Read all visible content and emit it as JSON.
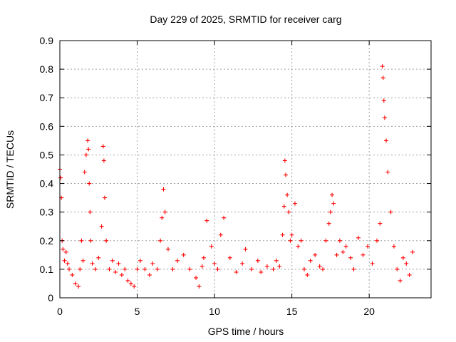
{
  "chart_data": {
    "type": "scatter",
    "title": "Day 229 of 2025, SRMTID for receiver carg",
    "xlabel": "GPS time / hours",
    "ylabel": "SRMTID / TECUs",
    "xlim": [
      0,
      24
    ],
    "ylim": [
      0,
      0.9
    ],
    "xticks": [
      0,
      5,
      10,
      15,
      20
    ],
    "xtick_labels": [
      "0",
      "5",
      "10",
      "15",
      "20"
    ],
    "yticks": [
      0,
      0.1,
      0.2,
      0.3,
      0.4,
      0.5,
      0.6,
      0.7,
      0.8,
      0.9
    ],
    "ytick_labels": [
      "0",
      "0.1",
      "0.2",
      "0.3",
      "0.4",
      "0.5",
      "0.6",
      "0.7",
      "0.8",
      "0.9"
    ],
    "grid": true,
    "marker": "+",
    "color": "#ff0000",
    "series": [
      {
        "name": "SRMTID",
        "x": [
          0.0,
          0.05,
          0.1,
          0.15,
          0.2,
          0.3,
          0.4,
          0.5,
          0.6,
          0.8,
          1.0,
          1.2,
          1.3,
          1.4,
          1.5,
          1.6,
          1.7,
          1.8,
          1.85,
          1.9,
          1.95,
          2.0,
          2.1,
          2.3,
          2.5,
          2.7,
          2.8,
          2.85,
          2.9,
          3.0,
          3.2,
          3.4,
          3.6,
          3.8,
          4.0,
          4.2,
          4.4,
          4.6,
          4.8,
          5.0,
          5.2,
          5.5,
          5.8,
          6.0,
          6.3,
          6.5,
          6.6,
          6.7,
          6.8,
          7.0,
          7.3,
          7.6,
          8.0,
          8.4,
          8.8,
          9.0,
          9.2,
          9.3,
          9.5,
          9.8,
          10.0,
          10.2,
          10.4,
          10.6,
          11.0,
          11.4,
          11.8,
          12.0,
          12.4,
          12.8,
          13.0,
          13.4,
          13.8,
          14.0,
          14.2,
          14.4,
          14.5,
          14.55,
          14.6,
          14.7,
          14.8,
          14.9,
          15.0,
          15.2,
          15.4,
          15.6,
          15.8,
          16.0,
          16.2,
          16.5,
          16.8,
          17.0,
          17.2,
          17.4,
          17.5,
          17.6,
          17.7,
          17.9,
          18.1,
          18.3,
          18.5,
          18.8,
          19.0,
          19.3,
          19.6,
          19.9,
          20.2,
          20.5,
          20.7,
          20.85,
          20.9,
          20.95,
          21.0,
          21.1,
          21.2,
          21.4,
          21.6,
          21.8,
          22.0,
          22.2,
          22.4,
          22.6,
          22.8
        ],
        "y": [
          0.45,
          0.42,
          0.35,
          0.2,
          0.17,
          0.13,
          0.16,
          0.12,
          0.1,
          0.08,
          0.05,
          0.04,
          0.1,
          0.2,
          0.13,
          0.44,
          0.5,
          0.55,
          0.52,
          0.4,
          0.3,
          0.2,
          0.12,
          0.1,
          0.14,
          0.25,
          0.53,
          0.48,
          0.35,
          0.2,
          0.1,
          0.13,
          0.09,
          0.12,
          0.08,
          0.1,
          0.06,
          0.05,
          0.04,
          0.1,
          0.13,
          0.1,
          0.08,
          0.12,
          0.1,
          0.2,
          0.28,
          0.38,
          0.3,
          0.17,
          0.1,
          0.13,
          0.15,
          0.1,
          0.07,
          0.04,
          0.11,
          0.14,
          0.27,
          0.18,
          0.12,
          0.1,
          0.22,
          0.28,
          0.14,
          0.09,
          0.12,
          0.17,
          0.1,
          0.13,
          0.09,
          0.11,
          0.1,
          0.13,
          0.11,
          0.22,
          0.32,
          0.48,
          0.43,
          0.36,
          0.3,
          0.2,
          0.22,
          0.33,
          0.18,
          0.2,
          0.1,
          0.08,
          0.13,
          0.15,
          0.11,
          0.1,
          0.2,
          0.26,
          0.3,
          0.36,
          0.33,
          0.15,
          0.2,
          0.16,
          0.18,
          0.14,
          0.1,
          0.21,
          0.15,
          0.18,
          0.12,
          0.2,
          0.26,
          0.81,
          0.77,
          0.69,
          0.63,
          0.55,
          0.44,
          0.3,
          0.18,
          0.1,
          0.06,
          0.14,
          0.12,
          0.08,
          0.16
        ]
      }
    ]
  }
}
